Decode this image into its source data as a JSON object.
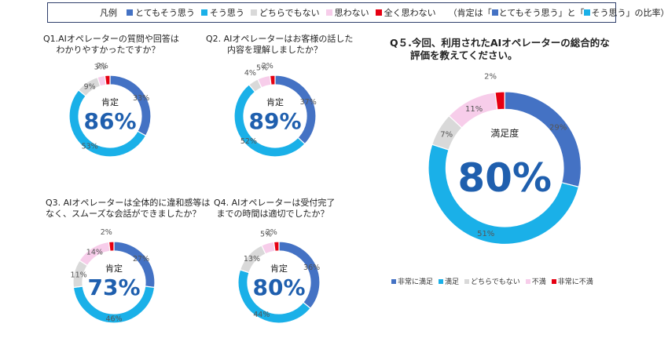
{
  "legend": {
    "title": "凡例",
    "items": [
      {
        "label": "とてもそう思う",
        "color": "#4472c4"
      },
      {
        "label": "そう思う",
        "color": "#1ab0e8"
      },
      {
        "label": "どちらでもない",
        "color": "#d9d9d9"
      },
      {
        "label": "思わない",
        "color": "#f7cdea"
      },
      {
        "label": "全く思わない",
        "color": "#e60012"
      }
    ],
    "note_prefix": "（肯定は「",
    "note_mid1": "とてもそう思う」と「",
    "note_mid2": "そう思う」の比率）"
  },
  "chart_data": [
    {
      "id": "q1",
      "type": "pie",
      "title_lines": [
        "Q1.AIオペレーターの質問や回答は",
        "わかりやすかったですか？"
      ],
      "center_label": "肯定",
      "center_value": "86%",
      "categories": [
        "とてもそう思う",
        "そう思う",
        "どちらでもない",
        "思わない",
        "全く思わない"
      ],
      "values": [
        33,
        53,
        9,
        3,
        2
      ],
      "labels": [
        "33%",
        "53%",
        "9%",
        "3%",
        "2%"
      ]
    },
    {
      "id": "q2",
      "type": "pie",
      "title_lines": [
        "Q2. AIオペレーターはお客様の話した",
        "内容を理解しましたか？"
      ],
      "center_label": "肯定",
      "center_value": "89%",
      "categories": [
        "とてもそう思う",
        "そう思う",
        "どちらでもない",
        "思わない",
        "全く思わない"
      ],
      "values": [
        37,
        52,
        4,
        5,
        2
      ],
      "labels": [
        "37%",
        "52%",
        "4%",
        "5%",
        "2%"
      ]
    },
    {
      "id": "q3",
      "type": "pie",
      "title_lines": [
        "Q3. AIオペレーターは全体的に違和感等は",
        "なく、スムーズな会話ができましたか？"
      ],
      "center_label": "肯定",
      "center_value": "73%",
      "categories": [
        "とてもそう思う",
        "そう思う",
        "どちらでもない",
        "思わない",
        "全く思わない"
      ],
      "values": [
        27,
        46,
        11,
        14,
        2
      ],
      "labels": [
        "27%",
        "46%",
        "11%",
        "14%",
        "2%"
      ]
    },
    {
      "id": "q4",
      "type": "pie",
      "title_lines": [
        "Q4. AIオペレーターは受付完了",
        "までの時間は適切でしたか？"
      ],
      "center_label": "肯定",
      "center_value": "80%",
      "categories": [
        "とてもそう思う",
        "そう思う",
        "どちらでもない",
        "思わない",
        "全く思わない"
      ],
      "values": [
        36,
        44,
        13,
        5,
        2
      ],
      "labels": [
        "36%",
        "44%",
        "13%",
        "5%",
        "2%"
      ]
    },
    {
      "id": "q5",
      "type": "pie",
      "title_lines": [
        "Q５.今回、利用されたAIオペレーターの総合的な",
        "評価を教えてください。"
      ],
      "center_label": "満足度",
      "center_value": "80%",
      "categories": [
        "非常に満足",
        "満足",
        "どちらでもない",
        "不満",
        "非常に不満"
      ],
      "values": [
        29,
        51,
        7,
        11,
        2
      ],
      "labels": [
        "29%",
        "51%",
        "7%",
        "11%",
        "2%"
      ],
      "legend_position": "bottom"
    }
  ]
}
